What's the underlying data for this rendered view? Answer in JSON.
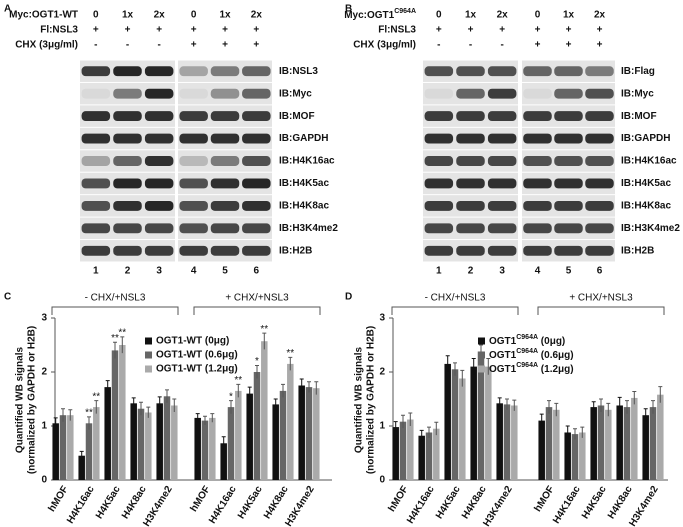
{
  "panel_labels": [
    "A",
    "B",
    "C",
    "D"
  ],
  "blots": [
    {
      "rows": [
        {
          "label": "Myc:OGT1-WT",
          "cells": [
            "0",
            "1x",
            "2x",
            "0",
            "1x",
            "2x"
          ]
        },
        {
          "label": "Fl:NSL3",
          "cells": [
            "+",
            "+",
            "+",
            "+",
            "+",
            "+"
          ]
        },
        {
          "label": "CHX (3μg/ml)",
          "cells": [
            "-",
            "-",
            "-",
            "+",
            "+",
            "+"
          ]
        }
      ],
      "antibodies": [
        "IB:NSL3",
        "IB:Myc",
        "IB:MOF",
        "IB:GAPDH",
        "IB:H4K16ac",
        "IB:H4K5ac",
        "IB:H4K8ac",
        "IB:H3K4me2",
        "IB:H2B"
      ],
      "lanes": [
        1,
        2,
        3,
        4,
        5,
        6
      ]
    },
    {
      "rows": [
        {
          "label_parts": [
            "Myc:OGT1",
            "C964A"
          ],
          "cells": [
            "0",
            "1x",
            "2x",
            "0",
            "1x",
            "2x"
          ]
        },
        {
          "label": "Fl:NSL3",
          "cells": [
            "+",
            "+",
            "+",
            "+",
            "+",
            "+"
          ]
        },
        {
          "label": "CHX (3μg/ml)",
          "cells": [
            "-",
            "-",
            "-",
            "+",
            "+",
            "+"
          ]
        }
      ],
      "antibodies": [
        "IB:Flag",
        "IB:Myc",
        "IB:MOF",
        "IB:GAPDH",
        "IB:H4K16ac",
        "IB:H4K5ac",
        "IB:H4K8ac",
        "IB:H3K4me2",
        "IB:H2B"
      ],
      "lanes": [
        1,
        2,
        3,
        4,
        5,
        6
      ]
    }
  ],
  "chart_data": [
    {
      "type": "bar",
      "ylabel": [
        "Quantified WB signals",
        "(normalized by GAPDH or H2B)"
      ],
      "groups": [
        "- CHX/+NSL3",
        "+ CHX/+NSL3"
      ],
      "categories": [
        "hMOF",
        "H4K16ac",
        "H4K5ac",
        "H4K8ac",
        "H3K4me2",
        "hMOF",
        "H4K16ac",
        "H4K5ac",
        "H4K8ac",
        "H3K4me2"
      ],
      "ylim": [
        0,
        3
      ],
      "yticks": [
        0,
        1,
        2,
        3
      ],
      "series": [
        {
          "name": "OGT1-WT (0μg)",
          "color": "#111111",
          "values": [
            1.05,
            0.45,
            1.72,
            1.42,
            1.42,
            1.15,
            0.68,
            1.6,
            1.4,
            1.75
          ],
          "errors": [
            0.1,
            0.08,
            0.12,
            0.1,
            0.12,
            0.08,
            0.12,
            0.12,
            0.1,
            0.12
          ],
          "significance": [
            null,
            null,
            null,
            null,
            null,
            null,
            null,
            null,
            null,
            null
          ]
        },
        {
          "name": "OGT1-WT (0.6μg)",
          "color": "#666666",
          "values": [
            1.2,
            1.05,
            2.4,
            1.32,
            1.55,
            1.1,
            1.35,
            2.0,
            1.65,
            1.72
          ],
          "errors": [
            0.12,
            0.12,
            0.15,
            0.12,
            0.12,
            0.08,
            0.12,
            0.12,
            0.12,
            0.1
          ],
          "significance": [
            null,
            "**",
            "**",
            null,
            null,
            null,
            "*",
            "*",
            null,
            null
          ]
        },
        {
          "name": "OGT1-WT (1.2μg)",
          "color": "#aaaaaa",
          "values": [
            1.2,
            1.35,
            2.5,
            1.25,
            1.38,
            1.15,
            1.65,
            2.57,
            2.15,
            1.7
          ],
          "errors": [
            0.1,
            0.12,
            0.15,
            0.1,
            0.12,
            0.08,
            0.12,
            0.15,
            0.12,
            0.12
          ],
          "significance": [
            null,
            "**",
            "**",
            null,
            null,
            null,
            "**",
            "**",
            "**",
            null
          ]
        }
      ]
    },
    {
      "type": "bar",
      "ylabel": [
        "Quantified WB signals",
        "(normalized by GAPDH or H2B)"
      ],
      "groups": [
        "- CHX/+NSL3",
        "+ CHX/+NSL3"
      ],
      "categories": [
        "hMOF",
        "H4K16ac",
        "H4K5ac",
        "H4K8ac",
        "H3K4me2",
        "hMOF",
        "H4K16ac",
        "H4K5ac",
        "H4K8ac",
        "H3K4me2"
      ],
      "ylim": [
        0,
        3
      ],
      "yticks": [
        0,
        1,
        2,
        3
      ],
      "series": [
        {
          "name_parts": [
            "OGT1",
            "C964A",
            " (0μg)"
          ],
          "color": "#111111",
          "values": [
            0.98,
            0.82,
            2.15,
            2.1,
            1.42,
            1.1,
            0.88,
            1.35,
            1.38,
            1.2
          ],
          "errors": [
            0.1,
            0.1,
            0.15,
            0.15,
            0.1,
            0.12,
            0.12,
            0.1,
            0.15,
            0.12
          ]
        },
        {
          "name_parts": [
            "OGT1",
            "C964A",
            " (0.6μg)"
          ],
          "color": "#666666",
          "values": [
            1.08,
            0.88,
            2.05,
            2.38,
            1.4,
            1.35,
            0.85,
            1.38,
            1.35,
            1.35
          ],
          "errors": [
            0.12,
            0.1,
            0.12,
            0.12,
            0.1,
            0.12,
            0.1,
            0.12,
            0.12,
            0.12
          ]
        },
        {
          "name_parts": [
            "OGT1",
            "C964A",
            " (1.2μg)"
          ],
          "color": "#aaaaaa",
          "values": [
            1.12,
            0.95,
            1.88,
            2.1,
            1.38,
            1.3,
            0.88,
            1.3,
            1.52,
            1.58
          ],
          "errors": [
            0.12,
            0.12,
            0.15,
            0.15,
            0.1,
            0.12,
            0.1,
            0.12,
            0.12,
            0.15
          ]
        }
      ]
    }
  ]
}
